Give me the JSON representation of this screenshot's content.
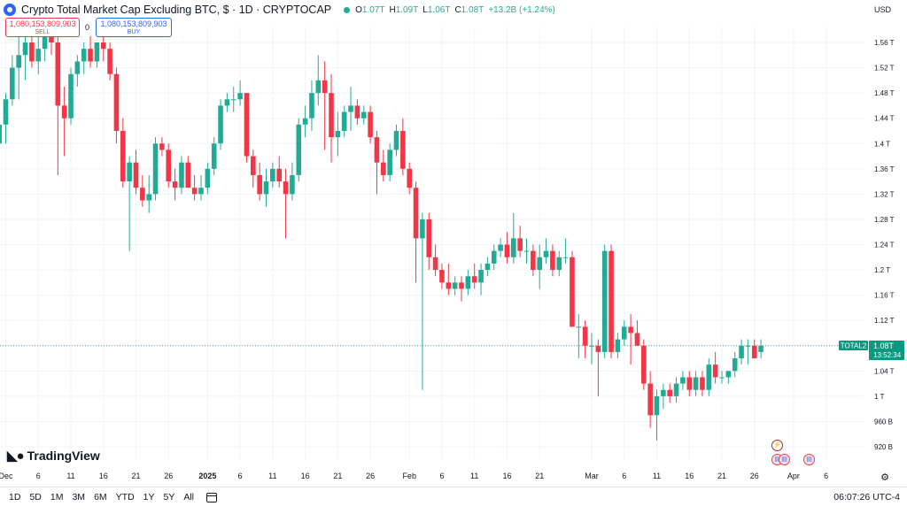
{
  "header": {
    "title": "Crypto Total Market Cap Excluding BTC, $ · 1D · CRYPTOCAP",
    "open_label": "O",
    "open": "1.07T",
    "high_label": "H",
    "high": "1.09T",
    "low_label": "L",
    "low": "1.06T",
    "close_label": "C",
    "close": "1.08T",
    "change": "+13.2B (+1.24%)"
  },
  "trade": {
    "sell_price": "1,080,153,809,903",
    "sell_label": "SELL",
    "spread": "0",
    "buy_price": "1,080,153,809,903",
    "buy_label": "BUY"
  },
  "currency": "USD",
  "price_tag": {
    "symbol": "TOTAL2",
    "value": "1.08T",
    "countdown": "13:52:34"
  },
  "brand": "TradingView",
  "bottom_bar": {
    "ranges": [
      "1D",
      "5D",
      "1M",
      "3M",
      "6M",
      "YTD",
      "1Y",
      "5Y",
      "All"
    ],
    "clock": "06:07:26 UTC-4"
  },
  "colors": {
    "up": "#22ab94",
    "down": "#f23645",
    "tag": "#089981",
    "grid": "#f0f3fa",
    "axis_text": "#131722"
  },
  "chart_data": {
    "type": "candlestick",
    "title": "Crypto Total Market Cap Excluding BTC",
    "ylabel": "USD",
    "y_ticks": [
      "920 B",
      "960 B",
      "1 T",
      "1.04 T",
      "1.08 T",
      "1.12 T",
      "1.16 T",
      "1.2 T",
      "1.24 T",
      "1.28 T",
      "1.32 T",
      "1.36 T",
      "1.4 T",
      "1.44 T",
      "1.48 T",
      "1.52 T",
      "1.56 T"
    ],
    "y_tick_values": [
      0.92,
      0.96,
      1.0,
      1.04,
      1.08,
      1.12,
      1.16,
      1.2,
      1.24,
      1.28,
      1.32,
      1.36,
      1.4,
      1.44,
      1.48,
      1.52,
      1.56
    ],
    "x_ticks": [
      {
        "label": "Dec",
        "date": "2024-12-01"
      },
      {
        "label": "6",
        "date": "2024-12-06"
      },
      {
        "label": "11",
        "date": "2024-12-11"
      },
      {
        "label": "16",
        "date": "2024-12-16"
      },
      {
        "label": "21",
        "date": "2024-12-21"
      },
      {
        "label": "26",
        "date": "2024-12-26"
      },
      {
        "label": "2025",
        "date": "2025-01-01"
      },
      {
        "label": "6",
        "date": "2025-01-06"
      },
      {
        "label": "11",
        "date": "2025-01-11"
      },
      {
        "label": "16",
        "date": "2025-01-16"
      },
      {
        "label": "21",
        "date": "2025-01-21"
      },
      {
        "label": "26",
        "date": "2025-01-26"
      },
      {
        "label": "Feb",
        "date": "2025-02-01"
      },
      {
        "label": "6",
        "date": "2025-02-06"
      },
      {
        "label": "11",
        "date": "2025-02-11"
      },
      {
        "label": "16",
        "date": "2025-02-16"
      },
      {
        "label": "21",
        "date": "2025-02-21"
      },
      {
        "label": "Mar",
        "date": "2025-03-01"
      },
      {
        "label": "6",
        "date": "2025-03-06"
      },
      {
        "label": "11",
        "date": "2025-03-11"
      },
      {
        "label": "16",
        "date": "2025-03-16"
      },
      {
        "label": "21",
        "date": "2025-03-21"
      },
      {
        "label": "26",
        "date": "2025-03-26"
      },
      {
        "label": "Apr",
        "date": "2025-04-01"
      },
      {
        "label": "6",
        "date": "2025-04-06"
      }
    ],
    "last_price": 1.08,
    "grid": true,
    "candles": [
      {
        "date": "2024-11-30",
        "o": 1.4,
        "h": 1.45,
        "l": 1.39,
        "c": 1.43
      },
      {
        "date": "2024-12-01",
        "o": 1.43,
        "h": 1.48,
        "l": 1.4,
        "c": 1.47
      },
      {
        "date": "2024-12-02",
        "o": 1.47,
        "h": 1.54,
        "l": 1.46,
        "c": 1.52
      },
      {
        "date": "2024-12-03",
        "o": 1.52,
        "h": 1.57,
        "l": 1.47,
        "c": 1.54
      },
      {
        "date": "2024-12-04",
        "o": 1.54,
        "h": 1.58,
        "l": 1.5,
        "c": 1.56
      },
      {
        "date": "2024-12-05",
        "o": 1.56,
        "h": 1.57,
        "l": 1.52,
        "c": 1.53
      },
      {
        "date": "2024-12-06",
        "o": 1.53,
        "h": 1.58,
        "l": 1.51,
        "c": 1.55
      },
      {
        "date": "2024-12-07",
        "o": 1.55,
        "h": 1.59,
        "l": 1.53,
        "c": 1.57
      },
      {
        "date": "2024-12-08",
        "o": 1.57,
        "h": 1.59,
        "l": 1.54,
        "c": 1.56
      },
      {
        "date": "2024-12-09",
        "o": 1.56,
        "h": 1.57,
        "l": 1.35,
        "c": 1.46
      },
      {
        "date": "2024-12-10",
        "o": 1.46,
        "h": 1.49,
        "l": 1.38,
        "c": 1.44
      },
      {
        "date": "2024-12-11",
        "o": 1.44,
        "h": 1.52,
        "l": 1.43,
        "c": 1.51
      },
      {
        "date": "2024-12-12",
        "o": 1.51,
        "h": 1.54,
        "l": 1.49,
        "c": 1.53
      },
      {
        "date": "2024-12-13",
        "o": 1.53,
        "h": 1.56,
        "l": 1.51,
        "c": 1.55
      },
      {
        "date": "2024-12-14",
        "o": 1.55,
        "h": 1.57,
        "l": 1.52,
        "c": 1.53
      },
      {
        "date": "2024-12-15",
        "o": 1.53,
        "h": 1.56,
        "l": 1.52,
        "c": 1.56
      },
      {
        "date": "2024-12-16",
        "o": 1.56,
        "h": 1.58,
        "l": 1.53,
        "c": 1.55
      },
      {
        "date": "2024-12-17",
        "o": 1.55,
        "h": 1.56,
        "l": 1.5,
        "c": 1.51
      },
      {
        "date": "2024-12-18",
        "o": 1.51,
        "h": 1.52,
        "l": 1.4,
        "c": 1.42
      },
      {
        "date": "2024-12-19",
        "o": 1.42,
        "h": 1.44,
        "l": 1.33,
        "c": 1.34
      },
      {
        "date": "2024-12-20",
        "o": 1.34,
        "h": 1.38,
        "l": 1.23,
        "c": 1.37
      },
      {
        "date": "2024-12-21",
        "o": 1.37,
        "h": 1.39,
        "l": 1.32,
        "c": 1.33
      },
      {
        "date": "2024-12-22",
        "o": 1.33,
        "h": 1.35,
        "l": 1.3,
        "c": 1.31
      },
      {
        "date": "2024-12-23",
        "o": 1.31,
        "h": 1.35,
        "l": 1.29,
        "c": 1.32
      },
      {
        "date": "2024-12-24",
        "o": 1.32,
        "h": 1.41,
        "l": 1.31,
        "c": 1.4
      },
      {
        "date": "2024-12-25",
        "o": 1.4,
        "h": 1.41,
        "l": 1.38,
        "c": 1.39
      },
      {
        "date": "2024-12-26",
        "o": 1.39,
        "h": 1.4,
        "l": 1.33,
        "c": 1.34
      },
      {
        "date": "2024-12-27",
        "o": 1.34,
        "h": 1.36,
        "l": 1.31,
        "c": 1.33
      },
      {
        "date": "2024-12-28",
        "o": 1.33,
        "h": 1.38,
        "l": 1.32,
        "c": 1.37
      },
      {
        "date": "2024-12-29",
        "o": 1.37,
        "h": 1.38,
        "l": 1.33,
        "c": 1.33
      },
      {
        "date": "2024-12-30",
        "o": 1.33,
        "h": 1.35,
        "l": 1.31,
        "c": 1.32
      },
      {
        "date": "2024-12-31",
        "o": 1.32,
        "h": 1.35,
        "l": 1.31,
        "c": 1.33
      },
      {
        "date": "2025-01-01",
        "o": 1.33,
        "h": 1.37,
        "l": 1.32,
        "c": 1.36
      },
      {
        "date": "2025-01-02",
        "o": 1.36,
        "h": 1.41,
        "l": 1.35,
        "c": 1.4
      },
      {
        "date": "2025-01-03",
        "o": 1.4,
        "h": 1.47,
        "l": 1.39,
        "c": 1.46
      },
      {
        "date": "2025-01-04",
        "o": 1.46,
        "h": 1.48,
        "l": 1.45,
        "c": 1.47
      },
      {
        "date": "2025-01-05",
        "o": 1.47,
        "h": 1.49,
        "l": 1.45,
        "c": 1.47
      },
      {
        "date": "2025-01-06",
        "o": 1.47,
        "h": 1.5,
        "l": 1.46,
        "c": 1.48
      },
      {
        "date": "2025-01-07",
        "o": 1.48,
        "h": 1.48,
        "l": 1.37,
        "c": 1.38
      },
      {
        "date": "2025-01-08",
        "o": 1.38,
        "h": 1.39,
        "l": 1.33,
        "c": 1.35
      },
      {
        "date": "2025-01-09",
        "o": 1.35,
        "h": 1.37,
        "l": 1.31,
        "c": 1.32
      },
      {
        "date": "2025-01-10",
        "o": 1.32,
        "h": 1.36,
        "l": 1.3,
        "c": 1.34
      },
      {
        "date": "2025-01-11",
        "o": 1.34,
        "h": 1.37,
        "l": 1.33,
        "c": 1.36
      },
      {
        "date": "2025-01-12",
        "o": 1.36,
        "h": 1.38,
        "l": 1.33,
        "c": 1.34
      },
      {
        "date": "2025-01-13",
        "o": 1.34,
        "h": 1.36,
        "l": 1.25,
        "c": 1.32
      },
      {
        "date": "2025-01-14",
        "o": 1.32,
        "h": 1.37,
        "l": 1.31,
        "c": 1.35
      },
      {
        "date": "2025-01-15",
        "o": 1.35,
        "h": 1.44,
        "l": 1.34,
        "c": 1.43
      },
      {
        "date": "2025-01-16",
        "o": 1.43,
        "h": 1.46,
        "l": 1.41,
        "c": 1.44
      },
      {
        "date": "2025-01-17",
        "o": 1.44,
        "h": 1.5,
        "l": 1.42,
        "c": 1.48
      },
      {
        "date": "2025-01-18",
        "o": 1.48,
        "h": 1.54,
        "l": 1.46,
        "c": 1.5
      },
      {
        "date": "2025-01-19",
        "o": 1.5,
        "h": 1.53,
        "l": 1.39,
        "c": 1.48
      },
      {
        "date": "2025-01-20",
        "o": 1.48,
        "h": 1.51,
        "l": 1.37,
        "c": 1.41
      },
      {
        "date": "2025-01-21",
        "o": 1.41,
        "h": 1.45,
        "l": 1.38,
        "c": 1.42
      },
      {
        "date": "2025-01-22",
        "o": 1.42,
        "h": 1.46,
        "l": 1.41,
        "c": 1.45
      },
      {
        "date": "2025-01-23",
        "o": 1.45,
        "h": 1.49,
        "l": 1.42,
        "c": 1.46
      },
      {
        "date": "2025-01-24",
        "o": 1.46,
        "h": 1.47,
        "l": 1.43,
        "c": 1.44
      },
      {
        "date": "2025-01-25",
        "o": 1.44,
        "h": 1.46,
        "l": 1.43,
        "c": 1.45
      },
      {
        "date": "2025-01-26",
        "o": 1.45,
        "h": 1.46,
        "l": 1.4,
        "c": 1.41
      },
      {
        "date": "2025-01-27",
        "o": 1.41,
        "h": 1.42,
        "l": 1.32,
        "c": 1.37
      },
      {
        "date": "2025-01-28",
        "o": 1.37,
        "h": 1.39,
        "l": 1.34,
        "c": 1.35
      },
      {
        "date": "2025-01-29",
        "o": 1.35,
        "h": 1.4,
        "l": 1.34,
        "c": 1.39
      },
      {
        "date": "2025-01-30",
        "o": 1.39,
        "h": 1.43,
        "l": 1.38,
        "c": 1.42
      },
      {
        "date": "2025-01-31",
        "o": 1.42,
        "h": 1.44,
        "l": 1.35,
        "c": 1.36
      },
      {
        "date": "2025-02-01",
        "o": 1.36,
        "h": 1.37,
        "l": 1.32,
        "c": 1.33
      },
      {
        "date": "2025-02-02",
        "o": 1.33,
        "h": 1.34,
        "l": 1.18,
        "c": 1.25
      },
      {
        "date": "2025-02-03",
        "o": 1.25,
        "h": 1.29,
        "l": 1.01,
        "c": 1.28
      },
      {
        "date": "2025-02-04",
        "o": 1.28,
        "h": 1.29,
        "l": 1.2,
        "c": 1.22
      },
      {
        "date": "2025-02-05",
        "o": 1.22,
        "h": 1.24,
        "l": 1.19,
        "c": 1.2
      },
      {
        "date": "2025-02-06",
        "o": 1.2,
        "h": 1.21,
        "l": 1.17,
        "c": 1.18
      },
      {
        "date": "2025-02-07",
        "o": 1.18,
        "h": 1.21,
        "l": 1.16,
        "c": 1.17
      },
      {
        "date": "2025-02-08",
        "o": 1.17,
        "h": 1.19,
        "l": 1.16,
        "c": 1.18
      },
      {
        "date": "2025-02-09",
        "o": 1.18,
        "h": 1.19,
        "l": 1.15,
        "c": 1.17
      },
      {
        "date": "2025-02-10",
        "o": 1.17,
        "h": 1.2,
        "l": 1.16,
        "c": 1.19
      },
      {
        "date": "2025-02-11",
        "o": 1.19,
        "h": 1.21,
        "l": 1.17,
        "c": 1.18
      },
      {
        "date": "2025-02-12",
        "o": 1.18,
        "h": 1.21,
        "l": 1.16,
        "c": 1.2
      },
      {
        "date": "2025-02-13",
        "o": 1.2,
        "h": 1.22,
        "l": 1.19,
        "c": 1.21
      },
      {
        "date": "2025-02-14",
        "o": 1.21,
        "h": 1.24,
        "l": 1.2,
        "c": 1.23
      },
      {
        "date": "2025-02-15",
        "o": 1.23,
        "h": 1.25,
        "l": 1.22,
        "c": 1.24
      },
      {
        "date": "2025-02-16",
        "o": 1.24,
        "h": 1.26,
        "l": 1.21,
        "c": 1.22
      },
      {
        "date": "2025-02-17",
        "o": 1.22,
        "h": 1.29,
        "l": 1.21,
        "c": 1.25
      },
      {
        "date": "2025-02-18",
        "o": 1.25,
        "h": 1.27,
        "l": 1.22,
        "c": 1.23
      },
      {
        "date": "2025-02-19",
        "o": 1.23,
        "h": 1.25,
        "l": 1.21,
        "c": 1.23
      },
      {
        "date": "2025-02-20",
        "o": 1.23,
        "h": 1.24,
        "l": 1.19,
        "c": 1.2
      },
      {
        "date": "2025-02-21",
        "o": 1.2,
        "h": 1.24,
        "l": 1.17,
        "c": 1.22
      },
      {
        "date": "2025-02-22",
        "o": 1.22,
        "h": 1.25,
        "l": 1.21,
        "c": 1.23
      },
      {
        "date": "2025-02-23",
        "o": 1.23,
        "h": 1.24,
        "l": 1.19,
        "c": 1.2
      },
      {
        "date": "2025-02-24",
        "o": 1.2,
        "h": 1.23,
        "l": 1.19,
        "c": 1.22
      },
      {
        "date": "2025-02-25",
        "o": 1.22,
        "h": 1.25,
        "l": 1.21,
        "c": 1.22
      },
      {
        "date": "2025-02-26",
        "o": 1.22,
        "h": 1.23,
        "l": 1.11,
        "c": 1.11
      },
      {
        "date": "2025-02-27",
        "o": 1.11,
        "h": 1.13,
        "l": 1.06,
        "c": 1.11
      },
      {
        "date": "2025-02-28",
        "o": 1.11,
        "h": 1.12,
        "l": 1.06,
        "c": 1.08
      },
      {
        "date": "2025-03-01",
        "o": 1.08,
        "h": 1.1,
        "l": 1.05,
        "c": 1.08
      },
      {
        "date": "2025-03-02",
        "o": 1.08,
        "h": 1.09,
        "l": 1.0,
        "c": 1.07
      },
      {
        "date": "2025-03-03",
        "o": 1.07,
        "h": 1.24,
        "l": 1.06,
        "c": 1.23
      },
      {
        "date": "2025-03-04",
        "o": 1.23,
        "h": 1.24,
        "l": 1.06,
        "c": 1.07
      },
      {
        "date": "2025-03-05",
        "o": 1.07,
        "h": 1.1,
        "l": 1.06,
        "c": 1.09
      },
      {
        "date": "2025-03-06",
        "o": 1.09,
        "h": 1.12,
        "l": 1.08,
        "c": 1.11
      },
      {
        "date": "2025-03-07",
        "o": 1.11,
        "h": 1.13,
        "l": 1.05,
        "c": 1.1
      },
      {
        "date": "2025-03-08",
        "o": 1.1,
        "h": 1.12,
        "l": 1.08,
        "c": 1.08
      },
      {
        "date": "2025-03-09",
        "o": 1.08,
        "h": 1.09,
        "l": 1.01,
        "c": 1.02
      },
      {
        "date": "2025-03-10",
        "o": 1.02,
        "h": 1.04,
        "l": 0.95,
        "c": 0.97
      },
      {
        "date": "2025-03-11",
        "o": 0.97,
        "h": 1.01,
        "l": 0.93,
        "c": 1.0
      },
      {
        "date": "2025-03-12",
        "o": 1.0,
        "h": 1.02,
        "l": 0.98,
        "c": 1.01
      },
      {
        "date": "2025-03-13",
        "o": 1.01,
        "h": 1.02,
        "l": 0.99,
        "c": 1.0
      },
      {
        "date": "2025-03-14",
        "o": 1.0,
        "h": 1.03,
        "l": 0.99,
        "c": 1.02
      },
      {
        "date": "2025-03-15",
        "o": 1.02,
        "h": 1.04,
        "l": 1.01,
        "c": 1.03
      },
      {
        "date": "2025-03-16",
        "o": 1.03,
        "h": 1.04,
        "l": 1.0,
        "c": 1.01
      },
      {
        "date": "2025-03-17",
        "o": 1.01,
        "h": 1.04,
        "l": 1.0,
        "c": 1.03
      },
      {
        "date": "2025-03-18",
        "o": 1.03,
        "h": 1.04,
        "l": 1.0,
        "c": 1.01
      },
      {
        "date": "2025-03-19",
        "o": 1.01,
        "h": 1.06,
        "l": 1.0,
        "c": 1.05
      },
      {
        "date": "2025-03-20",
        "o": 1.05,
        "h": 1.07,
        "l": 1.02,
        "c": 1.03
      },
      {
        "date": "2025-03-21",
        "o": 1.03,
        "h": 1.04,
        "l": 1.02,
        "c": 1.03
      },
      {
        "date": "2025-03-22",
        "o": 1.03,
        "h": 1.04,
        "l": 1.02,
        "c": 1.04
      },
      {
        "date": "2025-03-23",
        "o": 1.04,
        "h": 1.07,
        "l": 1.03,
        "c": 1.06
      },
      {
        "date": "2025-03-24",
        "o": 1.06,
        "h": 1.09,
        "l": 1.05,
        "c": 1.08
      },
      {
        "date": "2025-03-25",
        "o": 1.08,
        "h": 1.09,
        "l": 1.05,
        "c": 1.08
      },
      {
        "date": "2025-03-26",
        "o": 1.08,
        "h": 1.09,
        "l": 1.06,
        "c": 1.06
      },
      {
        "date": "2025-03-27",
        "o": 1.07,
        "h": 1.09,
        "l": 1.06,
        "c": 1.08
      }
    ]
  }
}
